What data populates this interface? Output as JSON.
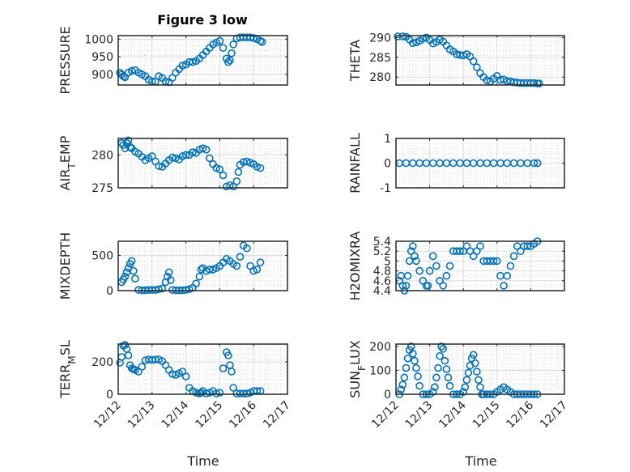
{
  "figure": {
    "title": "Figure 3 low",
    "xlabel": "Time",
    "marker_color": "#0072BD",
    "x_ticks": [
      "12/12",
      "12/13",
      "12/14",
      "12/15",
      "12/16",
      "12/17"
    ]
  },
  "chart_data": [
    {
      "type": "scatter",
      "name": "pressure",
      "ylabel": "PRESSURE",
      "ylim": [
        870,
        1010
      ],
      "yticks": [
        900,
        950,
        1000
      ],
      "x": [
        0.05,
        0.1,
        0.15,
        0.2,
        0.3,
        0.4,
        0.5,
        0.6,
        0.7,
        0.8,
        0.9,
        1.0,
        1.1,
        1.2,
        1.3,
        1.4,
        1.5,
        1.6,
        1.7,
        1.8,
        1.9,
        2.0,
        2.1,
        2.2,
        2.3,
        2.4,
        2.5,
        2.6,
        2.7,
        2.8,
        2.9,
        3.0,
        3.1,
        3.2,
        3.25,
        3.3,
        3.35,
        3.4,
        3.5,
        3.6,
        3.7,
        3.8,
        3.9,
        4.0,
        4.1,
        4.2,
        4.25
      ],
      "y": [
        905,
        900,
        895,
        892,
        905,
        910,
        912,
        905,
        900,
        895,
        885,
        880,
        880,
        895,
        890,
        880,
        878,
        890,
        905,
        915,
        925,
        928,
        935,
        935,
        938,
        945,
        955,
        965,
        975,
        985,
        990,
        995,
        975,
        945,
        935,
        940,
        960,
        985,
        1002,
        1005,
        1005,
        1005,
        1005,
        1003,
        1000,
        995,
        992
      ]
    },
    {
      "type": "scatter",
      "name": "theta",
      "ylabel": "THETA",
      "ylim": [
        278,
        290.5
      ],
      "yticks": [
        280,
        285,
        290
      ],
      "x": [
        0.05,
        0.2,
        0.3,
        0.4,
        0.5,
        0.6,
        0.7,
        0.8,
        0.9,
        1.0,
        1.1,
        1.2,
        1.3,
        1.4,
        1.5,
        1.6,
        1.7,
        1.8,
        1.9,
        2.0,
        2.1,
        2.2,
        2.3,
        2.4,
        2.5,
        2.6,
        2.7,
        2.8,
        2.9,
        3.0,
        3.1,
        3.2,
        3.3,
        3.4,
        3.5,
        3.6,
        3.7,
        3.8,
        3.9,
        4.0,
        4.1,
        4.2,
        4.25
      ],
      "y": [
        290.3,
        290.3,
        290.2,
        289.5,
        288.6,
        288.8,
        289.2,
        289.7,
        290,
        289.4,
        288.5,
        288.9,
        289.5,
        289,
        288,
        287,
        286.5,
        285.8,
        285.6,
        285.5,
        285.8,
        285.2,
        284,
        282.5,
        281,
        280,
        279.2,
        278.9,
        279.6,
        280.3,
        279.3,
        279.4,
        279,
        278.9,
        278.7,
        278.6,
        278.5,
        278.5,
        278.5,
        278.5,
        278.5,
        278.4,
        278.4
      ]
    },
    {
      "type": "scatter",
      "name": "air_temp",
      "ylabel": "AIR_TEMP",
      "ylim": [
        275,
        282.5
      ],
      "yticks": [
        275,
        280
      ],
      "x": [
        0.1,
        0.15,
        0.2,
        0.25,
        0.3,
        0.35,
        0.4,
        0.5,
        0.6,
        0.7,
        0.8,
        0.9,
        1.0,
        1.1,
        1.2,
        1.3,
        1.4,
        1.5,
        1.6,
        1.7,
        1.8,
        1.9,
        2.0,
        2.1,
        2.2,
        2.3,
        2.4,
        2.5,
        2.6,
        2.7,
        2.8,
        2.9,
        3.0,
        3.1,
        3.2,
        3.3,
        3.4,
        3.5,
        3.55,
        3.6,
        3.7,
        3.8,
        3.9,
        4.0,
        4.1,
        4.2
      ],
      "y": [
        281.8,
        281.5,
        281,
        281.8,
        282.2,
        281.2,
        281,
        280.5,
        280.2,
        279.7,
        279.2,
        279.5,
        279.8,
        279,
        278.3,
        278.2,
        278.7,
        279.2,
        279.6,
        279.5,
        279.3,
        279.8,
        280,
        280,
        280.4,
        280.3,
        280.8,
        281,
        280.8,
        279.5,
        278.6,
        278,
        277.8,
        276.9,
        275.2,
        275.4,
        275.2,
        276,
        277.4,
        278.5,
        278.9,
        279,
        278.8,
        278.6,
        278.2,
        278
      ]
    },
    {
      "type": "scatter",
      "name": "rainfall",
      "ylabel": "RAINFALL",
      "ylim": [
        -1,
        1
      ],
      "yticks": [
        -1,
        0,
        1
      ],
      "x": [
        0.1,
        0.3,
        0.5,
        0.7,
        0.9,
        1.1,
        1.3,
        1.5,
        1.7,
        1.9,
        2.1,
        2.3,
        2.5,
        2.7,
        2.9,
        3.1,
        3.3,
        3.5,
        3.7,
        3.9,
        4.1,
        4.2
      ],
      "y": [
        0,
        0,
        0,
        0,
        0,
        0,
        0,
        0,
        0,
        0,
        0,
        0,
        0,
        0,
        0,
        0,
        0,
        0,
        0,
        0,
        0,
        0
      ]
    },
    {
      "type": "scatter",
      "name": "mixdepth",
      "ylabel": "MIXDEPTH",
      "ylim": [
        0,
        700
      ],
      "yticks": [
        0,
        500
      ],
      "x": [
        0.1,
        0.15,
        0.2,
        0.25,
        0.3,
        0.35,
        0.4,
        0.45,
        0.5,
        0.6,
        0.7,
        0.8,
        0.9,
        1.0,
        1.1,
        1.2,
        1.3,
        1.4,
        1.45,
        1.5,
        1.55,
        1.6,
        1.7,
        1.8,
        1.9,
        2.0,
        2.1,
        2.2,
        2.3,
        2.4,
        2.45,
        2.5,
        2.6,
        2.7,
        2.8,
        2.9,
        3.0,
        3.1,
        3.2,
        3.3,
        3.4,
        3.5,
        3.6,
        3.7,
        3.8,
        3.9,
        4.0,
        4.1,
        4.2
      ],
      "y": [
        120,
        160,
        200,
        260,
        320,
        380,
        420,
        280,
        170,
        10,
        5,
        5,
        10,
        10,
        10,
        20,
        30,
        120,
        200,
        260,
        150,
        10,
        5,
        5,
        5,
        10,
        20,
        40,
        100,
        200,
        300,
        320,
        280,
        300,
        300,
        320,
        350,
        400,
        450,
        420,
        380,
        350,
        480,
        640,
        600,
        350,
        280,
        300,
        400
      ]
    },
    {
      "type": "scatter",
      "name": "h2omixra",
      "ylabel": "H2OMIXRA",
      "ylim": [
        4.4,
        5.4
      ],
      "yticks": [
        4.4,
        4.6,
        4.8,
        5,
        5.2,
        5.4
      ],
      "ytick_labels": [
        "4.4",
        "4.6",
        "4.8",
        "5",
        "5.2",
        "5.4"
      ],
      "x": [
        0.1,
        0.15,
        0.2,
        0.25,
        0.3,
        0.35,
        0.4,
        0.45,
        0.5,
        0.55,
        0.6,
        0.7,
        0.8,
        0.9,
        0.95,
        1.0,
        1.1,
        1.2,
        1.3,
        1.4,
        1.5,
        1.6,
        1.7,
        1.8,
        1.9,
        2.0,
        2.1,
        2.2,
        2.3,
        2.4,
        2.5,
        2.6,
        2.7,
        2.8,
        2.9,
        3.0,
        3.1,
        3.2,
        3.3,
        3.4,
        3.5,
        3.6,
        3.7,
        3.8,
        3.9,
        4.0,
        4.1,
        4.2
      ],
      "y": [
        4.6,
        4.7,
        4.5,
        4.4,
        4.5,
        4.7,
        5.0,
        5.2,
        5.3,
        5.1,
        5.0,
        4.8,
        4.6,
        4.5,
        4.5,
        4.8,
        5.1,
        4.9,
        4.6,
        4.5,
        4.7,
        4.9,
        5.2,
        5.2,
        5.2,
        5.2,
        5.3,
        5.2,
        5.1,
        5.2,
        5.3,
        5.0,
        5.0,
        5.0,
        5.0,
        5.0,
        4.7,
        4.5,
        4.7,
        4.9,
        5.1,
        5.3,
        5.2,
        5.3,
        5.3,
        5.3,
        5.35,
        5.4
      ]
    },
    {
      "type": "scatter",
      "name": "terr_msl",
      "ylabel": "TERR_MSL",
      "ylim": [
        0,
        310
      ],
      "yticks": [
        0,
        200
      ],
      "x": [
        0.05,
        0.1,
        0.15,
        0.2,
        0.25,
        0.3,
        0.35,
        0.4,
        0.45,
        0.5,
        0.6,
        0.7,
        0.8,
        0.9,
        1.0,
        1.1,
        1.2,
        1.3,
        1.4,
        1.5,
        1.6,
        1.7,
        1.8,
        1.9,
        2.0,
        2.1,
        2.2,
        2.3,
        2.4,
        2.45,
        2.5,
        2.6,
        2.7,
        2.8,
        2.9,
        3.0,
        3.1,
        3.2,
        3.25,
        3.3,
        3.35,
        3.4,
        3.5,
        3.6,
        3.7,
        3.8,
        3.9,
        4.0,
        4.1,
        4.2
      ],
      "y": [
        195,
        230,
        300,
        305,
        280,
        240,
        180,
        160,
        155,
        150,
        140,
        170,
        210,
        215,
        212,
        215,
        215,
        205,
        180,
        150,
        125,
        120,
        130,
        140,
        110,
        40,
        20,
        10,
        5,
        10,
        20,
        5,
        10,
        20,
        5,
        10,
        160,
        260,
        240,
        180,
        140,
        40,
        5,
        5,
        5,
        5,
        10,
        20,
        20,
        20
      ]
    },
    {
      "type": "scatter",
      "name": "sun_flux",
      "ylabel": "SUN_FLUX",
      "ylim": [
        0,
        210
      ],
      "yticks": [
        0,
        100,
        200
      ],
      "x": [
        0.1,
        0.15,
        0.2,
        0.25,
        0.3,
        0.35,
        0.4,
        0.45,
        0.5,
        0.55,
        0.6,
        0.65,
        0.7,
        0.8,
        0.9,
        1.0,
        1.1,
        1.15,
        1.2,
        1.25,
        1.3,
        1.35,
        1.4,
        1.45,
        1.5,
        1.55,
        1.6,
        1.7,
        1.8,
        1.9,
        2.0,
        2.05,
        2.1,
        2.15,
        2.2,
        2.25,
        2.3,
        2.35,
        2.4,
        2.45,
        2.5,
        2.55,
        2.6,
        2.7,
        2.8,
        2.9,
        3.0,
        3.1,
        3.2,
        3.3,
        3.4,
        3.5,
        3.6,
        3.7,
        3.8,
        3.9,
        4.0,
        4.1,
        4.2
      ],
      "y": [
        0,
        20,
        40,
        70,
        110,
        150,
        185,
        200,
        170,
        140,
        110,
        75,
        35,
        0,
        0,
        0,
        10,
        30,
        70,
        110,
        160,
        200,
        190,
        140,
        105,
        70,
        35,
        0,
        0,
        0,
        10,
        30,
        60,
        90,
        120,
        150,
        165,
        130,
        95,
        60,
        30,
        0,
        0,
        0,
        0,
        0,
        10,
        20,
        30,
        20,
        10,
        0,
        0,
        0,
        0,
        0,
        0,
        0,
        0
      ]
    }
  ]
}
